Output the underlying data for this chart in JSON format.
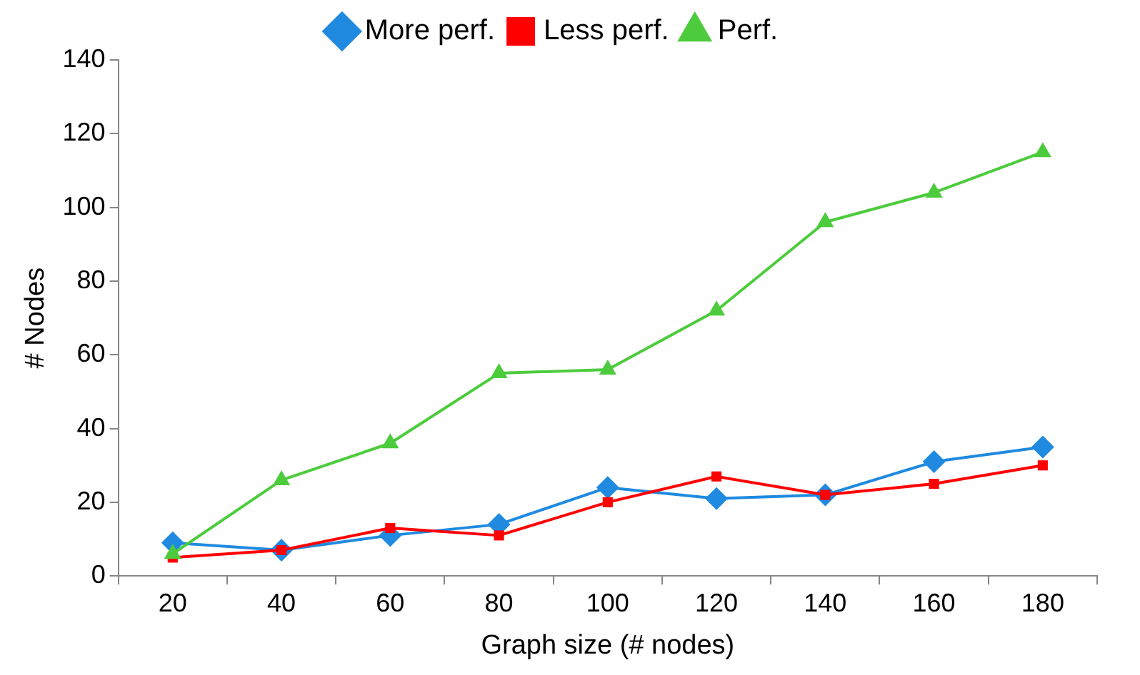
{
  "chart_data": {
    "type": "line",
    "xlabel": "Graph size (# nodes)",
    "ylabel": "# Nodes",
    "categories": [
      "20",
      "40",
      "60",
      "80",
      "100",
      "120",
      "140",
      "160",
      "180"
    ],
    "series": [
      {
        "name": "More perf.",
        "color": "#1f8ae0",
        "marker": "diamond",
        "values": [
          9,
          7,
          11,
          14,
          24,
          21,
          22,
          31,
          35
        ]
      },
      {
        "name": "Less perf.",
        "color": "#ff0000",
        "marker": "square",
        "values": [
          5,
          7,
          13,
          11,
          20,
          27,
          22,
          25,
          30
        ]
      },
      {
        "name": "Perf.",
        "color": "#4ccc3c",
        "marker": "triangle",
        "values": [
          6,
          26,
          36,
          55,
          56,
          72,
          96,
          104,
          115
        ]
      }
    ],
    "ylim": [
      0,
      140
    ],
    "yticks": [
      0,
      20,
      40,
      60,
      80,
      100,
      120,
      140
    ],
    "grid": false,
    "legend": "top",
    "line_style": "solid"
  }
}
